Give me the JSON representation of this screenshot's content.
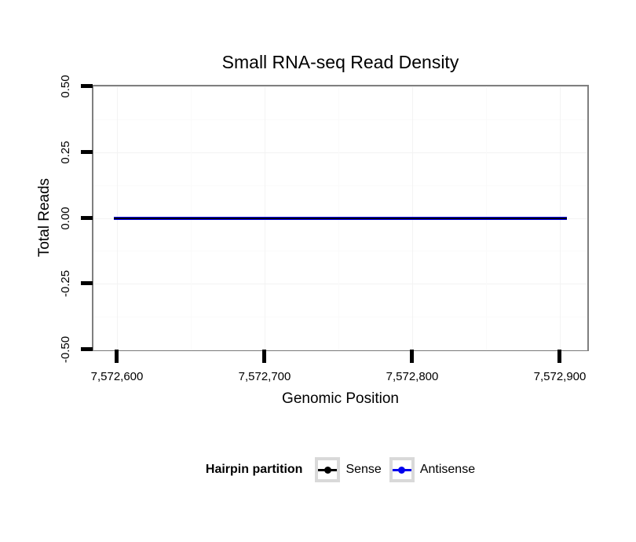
{
  "chart_data": {
    "type": "line",
    "title": "Small RNA-seq Read Density",
    "xlabel": "Genomic Position",
    "ylabel": "Total Reads",
    "x_tick_labels": [
      "7,572,600",
      "7,572,700",
      "7,572,800",
      "7,572,900"
    ],
    "y_tick_labels": [
      "0.50",
      "0.25",
      "0.00",
      "-0.25",
      "-0.50"
    ],
    "xlim": [
      7572584,
      7572920
    ],
    "ylim": [
      -0.5,
      0.5
    ],
    "grid": "major and minor, very faint",
    "series": [
      {
        "name": "Sense",
        "color": "#000000",
        "x_start": 7572599,
        "x_end": 7572905,
        "y_constant": 0
      },
      {
        "name": "Antisense",
        "color": "#0000EE",
        "x_start": 7572599,
        "x_end": 7572905,
        "y_constant": 0
      }
    ],
    "legend": {
      "title": "Hairpin partition",
      "position": "bottom",
      "entries": [
        {
          "label": "Sense",
          "color": "#000000"
        },
        {
          "label": "Antisense",
          "color": "#0000EE"
        }
      ]
    },
    "colors": {
      "panel_border": "#7F7F7F",
      "grid_major": "#F3F3F3",
      "grid_minor": "#FAFAFA",
      "tick": "#000000",
      "legend_key_border": "#D9D9D9",
      "background": "#FFFFFF"
    }
  }
}
